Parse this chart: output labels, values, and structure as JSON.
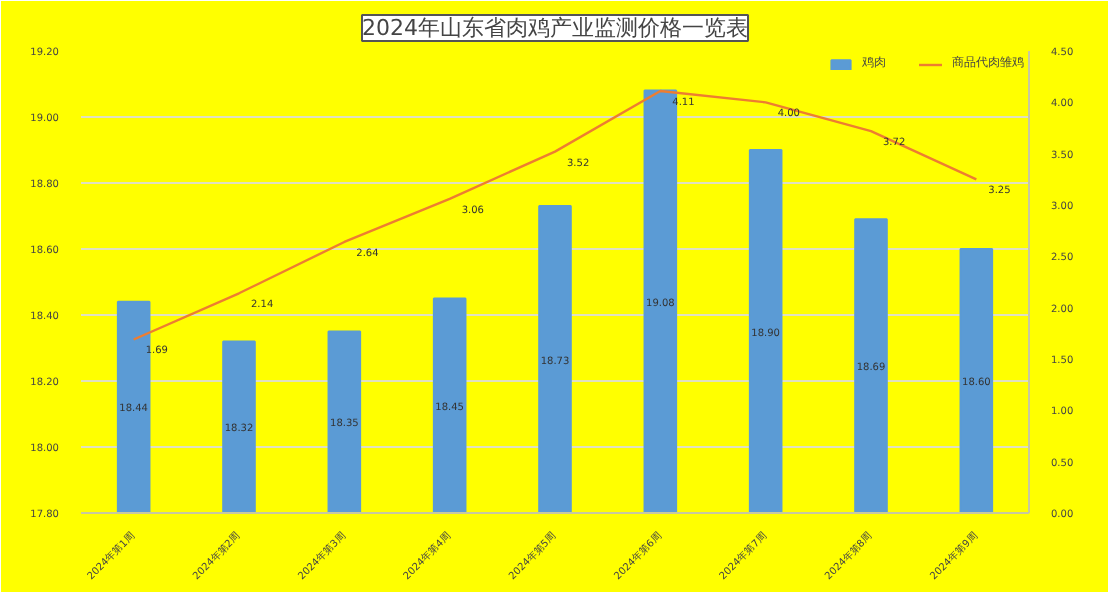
{
  "chart_data": {
    "type": "bar",
    "title": "2024年山东省肉鸡产业监测价格一览表",
    "categories": [
      "2024年第1周",
      "2024年第2周",
      "2024年第3周",
      "2024年第4周",
      "2024年第5周",
      "2024年第6周",
      "2024年第7周",
      "2024年第8周",
      "2024年第9周"
    ],
    "series": [
      {
        "name": "鸡肉",
        "color": "#5b9bd5",
        "values": [
          18.44,
          18.32,
          18.35,
          18.45,
          18.73,
          19.08,
          18.9,
          18.69,
          18.6
        ],
        "value_labels": [
          "18.44",
          "18.32",
          "18.35",
          "18.45",
          "18.73",
          "19.08",
          "18.90",
          "18.69",
          "18.60"
        ]
      },
      {
        "name": "商品代肉雏鸡",
        "type": "line",
        "axis": "y2",
        "color": "#ed7d31",
        "values": [
          1.69,
          2.14,
          2.64,
          3.06,
          3.52,
          4.11,
          4.0,
          3.72,
          3.25
        ],
        "value_labels": [
          "1.69",
          "2.14",
          "2.64",
          "3.06",
          "3.52",
          "4.11",
          "4.00",
          "3.72",
          "3.25"
        ]
      }
    ],
    "ylim": [
      17.8,
      19.2
    ],
    "yticks": [
      {
        "value": 17.8,
        "label": "17.80"
      },
      {
        "value": 18.0,
        "label": "18.00"
      },
      {
        "value": 18.2,
        "label": "18.20"
      },
      {
        "value": 18.4,
        "label": "18.40"
      },
      {
        "value": 18.6,
        "label": "18.60"
      },
      {
        "value": 18.8,
        "label": "18.80"
      },
      {
        "value": 19.0,
        "label": "19.00"
      },
      {
        "value": 19.2,
        "label": "19.20"
      }
    ],
    "y2lim": [
      0,
      4.5
    ],
    "y2ticks": [
      {
        "value": 0,
        "label": "0.00"
      },
      {
        "value": 0.5,
        "label": "0.50"
      },
      {
        "value": 1,
        "label": "1.00"
      },
      {
        "value": 1.5,
        "label": "1.50"
      },
      {
        "value": 2,
        "label": "2.00"
      },
      {
        "value": 2.5,
        "label": "2.50"
      },
      {
        "value": 3,
        "label": "3.00"
      },
      {
        "value": 3.5,
        "label": "3.50"
      },
      {
        "value": 4,
        "label": "4.00"
      },
      {
        "value": 4.5,
        "label": "4.50"
      }
    ],
    "grid": "y",
    "legend": "top right",
    "marker": "none",
    "line_style": "solid"
  }
}
